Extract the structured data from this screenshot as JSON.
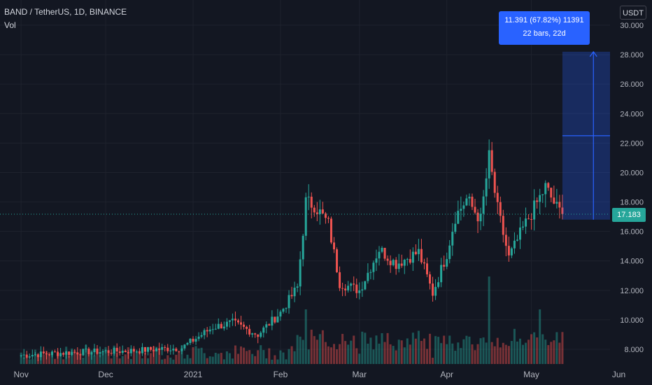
{
  "legend": {
    "title": "BAND / TetherUS, 1D, BINANCE",
    "sub": "Vol"
  },
  "currency_label": "USDT",
  "last_price": "17.183",
  "measure": {
    "line1": "11.391 (67.82%) 11391",
    "line2": "22 bars, 22d"
  },
  "colors": {
    "up": "#26a69a",
    "down": "#ef5350",
    "bg": "#131722",
    "grid": "#1e222d",
    "measure": "#2962ff"
  },
  "chart_data": {
    "type": "candlestick",
    "y_ticks": [
      "30.000",
      "28.000",
      "26.000",
      "24.000",
      "22.000",
      "20.000",
      "18.000",
      "16.000",
      "14.000",
      "12.000",
      "10.000",
      "8.000"
    ],
    "x_ticks": [
      "Nov",
      "Dec",
      "2021",
      "Feb",
      "Mar",
      "Apr",
      "May",
      "Jun"
    ],
    "ylim": [
      7,
      30.5
    ],
    "keypoints": [
      {
        "date": "2020-11-01",
        "close": 7.6
      },
      {
        "date": "2020-11-20",
        "close": 7.8
      },
      {
        "date": "2020-12-10",
        "close": 7.9
      },
      {
        "date": "2020-12-28",
        "close": 8.1
      },
      {
        "date": "2021-01-08",
        "close": 9.5
      },
      {
        "date": "2021-01-15",
        "close": 9.8
      },
      {
        "date": "2021-01-24",
        "close": 9.0
      },
      {
        "date": "2021-02-01",
        "close": 10.5
      },
      {
        "date": "2021-02-07",
        "close": 12.2
      },
      {
        "date": "2021-02-10",
        "close": 18.0
      },
      {
        "date": "2021-02-13",
        "close": 17.8
      },
      {
        "date": "2021-02-18",
        "close": 16.5
      },
      {
        "date": "2021-02-22",
        "close": 12.5
      },
      {
        "date": "2021-03-01",
        "close": 12.0
      },
      {
        "date": "2021-03-08",
        "close": 14.8
      },
      {
        "date": "2021-03-14",
        "close": 13.8
      },
      {
        "date": "2021-03-22",
        "close": 14.6
      },
      {
        "date": "2021-03-27",
        "close": 11.8
      },
      {
        "date": "2021-04-01",
        "close": 14.5
      },
      {
        "date": "2021-04-04",
        "close": 17.0
      },
      {
        "date": "2021-04-08",
        "close": 18.2
      },
      {
        "date": "2021-04-13",
        "close": 16.8
      },
      {
        "date": "2021-04-16",
        "close": 21.0
      },
      {
        "date": "2021-04-19",
        "close": 17.5
      },
      {
        "date": "2021-04-23",
        "close": 14.2
      },
      {
        "date": "2021-04-28",
        "close": 16.2
      },
      {
        "date": "2021-05-02",
        "close": 17.6
      },
      {
        "date": "2021-05-06",
        "close": 19.0
      },
      {
        "date": "2021-05-10",
        "close": 17.6
      },
      {
        "date": "2021-05-12",
        "close": 17.183
      }
    ],
    "volume_spikes": [
      {
        "date": "2021-02-10",
        "vol": "high"
      },
      {
        "date": "2021-04-16",
        "vol": "highest"
      },
      {
        "date": "2021-05-04",
        "vol": "high"
      }
    ],
    "measure_range": {
      "from": 16.8,
      "to": 28.2,
      "start_date": "2021-05-12",
      "end_date": "2021-06-03"
    }
  }
}
